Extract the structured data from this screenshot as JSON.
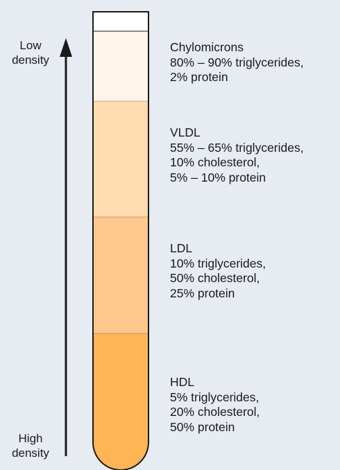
{
  "axis": {
    "low_label": [
      "Low",
      "density"
    ],
    "high_label": [
      "High",
      "density"
    ]
  },
  "colors": {
    "background": "#e6ecf1",
    "outline": "#1a1a1a",
    "empty_top": "#ffffff",
    "chylomicrons": "#fff4ea",
    "vldl": "#ffdcb0",
    "ldl": "#ffc88c",
    "hdl": "#ffb556"
  },
  "fractions": [
    {
      "name": "Chylomicrons",
      "lines": [
        "80% – 90% triglycerides,",
        "2% protein"
      ],
      "color_key": "chylomicrons"
    },
    {
      "name": "VLDL",
      "lines": [
        "55% – 65% triglycerides,",
        "10% cholesterol,",
        "5% – 10% protein"
      ],
      "color_key": "vldl"
    },
    {
      "name": "LDL",
      "lines": [
        "10% triglycerides,",
        "50% cholesterol,",
        "25% protein"
      ],
      "color_key": "ldl"
    },
    {
      "name": "HDL",
      "lines": [
        "5% triglycerides,",
        "20% cholesterol,",
        "50% protein"
      ],
      "color_key": "hdl"
    }
  ]
}
